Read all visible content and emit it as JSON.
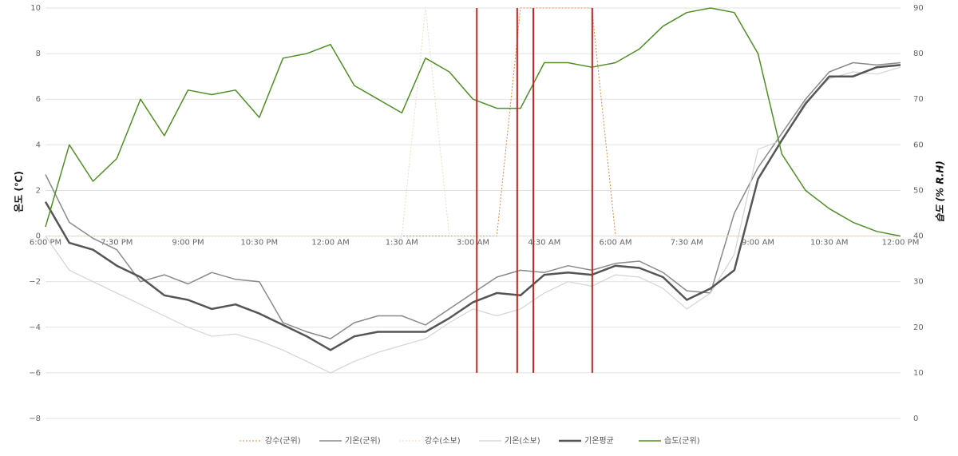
{
  "chart_data": {
    "type": "line",
    "ylabel": "온도 (℃)",
    "y2label": "습도 (% R.H)",
    "x": [
      0,
      0.5,
      1,
      1.5,
      2,
      2.5,
      3,
      3.5,
      4,
      4.5,
      5,
      5.5,
      6,
      6.5,
      7,
      7.5,
      8,
      8.5,
      9,
      9.5,
      10,
      10.5,
      11,
      11.5,
      12,
      12.5,
      13,
      13.5,
      14,
      14.5,
      15,
      15.5,
      16,
      16.5,
      17,
      17.5,
      18
    ],
    "xlim": [
      0,
      18
    ],
    "xticks": [
      {
        "value": 0,
        "label": "6:00 PM"
      },
      {
        "value": 1.5,
        "label": "7:30 PM"
      },
      {
        "value": 3,
        "label": "9:00 PM"
      },
      {
        "value": 4.5,
        "label": "10:30 PM"
      },
      {
        "value": 6,
        "label": "12:00 AM"
      },
      {
        "value": 7.5,
        "label": "1:30 AM"
      },
      {
        "value": 9,
        "label": "3:00 AM"
      },
      {
        "value": 10.5,
        "label": "4:30 AM"
      },
      {
        "value": 12,
        "label": "6:00 AM"
      },
      {
        "value": 13.5,
        "label": "7:30 AM"
      },
      {
        "value": 15,
        "label": "9:00 AM"
      },
      {
        "value": 16.5,
        "label": "10:30 AM"
      },
      {
        "value": 18,
        "label": "12:00 PM"
      }
    ],
    "ylim": [
      -8,
      10
    ],
    "yticks": [
      {
        "value": -8,
        "label": "−8"
      },
      {
        "value": -6,
        "label": "−6"
      },
      {
        "value": -4,
        "label": "−4"
      },
      {
        "value": -2,
        "label": "−2"
      },
      0,
      2,
      4,
      6,
      8,
      10
    ],
    "y2lim": [
      0,
      90
    ],
    "y2ticks": [
      0,
      10,
      20,
      30,
      40,
      50,
      60,
      70,
      80,
      90
    ],
    "grid": true,
    "legend": "bottom",
    "vlines": [
      9.08,
      9.93,
      10.27,
      11.51
    ],
    "vline_color": "#c0281e",
    "vline_bottom": -6,
    "series": [
      {
        "name": "강수(군위)",
        "color": "#e08a4a",
        "dashed": true,
        "width": 1,
        "values": [
          0,
          0,
          0,
          0,
          0,
          0,
          0,
          0,
          0,
          0,
          0,
          0,
          0,
          0,
          0,
          0,
          0,
          0,
          0,
          0,
          10,
          10,
          10,
          10,
          0,
          0,
          0,
          0,
          0,
          0,
          0,
          0,
          0,
          0,
          0,
          0,
          0
        ]
      },
      {
        "name": "기온(군위)",
        "color": "#8a8a8a",
        "width": 1.5,
        "values": [
          2.7,
          0.6,
          -0.1,
          -0.6,
          -2.0,
          -1.7,
          -2.1,
          -1.6,
          -1.9,
          -2.0,
          -3.8,
          -4.2,
          -4.5,
          -3.8,
          -3.5,
          -3.5,
          -3.9,
          -3.2,
          -2.5,
          -1.8,
          -1.5,
          -1.6,
          -1.3,
          -1.5,
          -1.2,
          -1.1,
          -1.6,
          -2.4,
          -2.5,
          1.0,
          3.0,
          4.5,
          6.0,
          7.2,
          7.6,
          7.5,
          7.6
        ]
      },
      {
        "name": "강수(소보)",
        "color": "#f3d9bd",
        "dashed": true,
        "width": 1,
        "values": [
          0,
          0,
          0,
          0,
          0,
          0,
          0,
          0,
          0,
          0,
          0,
          0,
          0,
          0,
          0,
          0,
          10,
          0,
          0,
          0,
          0,
          0,
          0,
          0,
          0,
          0,
          0,
          0,
          0,
          0,
          0,
          0,
          0,
          0,
          0,
          0,
          0
        ]
      },
      {
        "name": "기온(소보)",
        "color": "#d4d4d4",
        "width": 1.2,
        "values": [
          0.0,
          -1.5,
          -2.0,
          -2.5,
          -3.0,
          -3.5,
          -4.0,
          -4.4,
          -4.3,
          -4.6,
          -5.0,
          -5.5,
          -6.0,
          -5.5,
          -5.1,
          -4.8,
          -4.5,
          -3.8,
          -3.2,
          -3.5,
          -3.2,
          -2.5,
          -2.0,
          -2.2,
          -1.7,
          -1.8,
          -2.3,
          -3.2,
          -2.5,
          -0.8,
          3.8,
          4.2,
          5.9,
          6.9,
          7.2,
          7.1,
          7.4
        ]
      },
      {
        "name": "기온평균",
        "color": "#555555",
        "width": 2.5,
        "values": [
          1.5,
          -0.3,
          -0.6,
          -1.3,
          -1.8,
          -2.6,
          -2.8,
          -3.2,
          -3.0,
          -3.4,
          -3.9,
          -4.4,
          -5.0,
          -4.4,
          -4.2,
          -4.2,
          -4.2,
          -3.6,
          -2.9,
          -2.5,
          -2.6,
          -1.7,
          -1.6,
          -1.7,
          -1.3,
          -1.4,
          -1.8,
          -2.8,
          -2.3,
          -1.5,
          2.5,
          4.2,
          5.8,
          7.0,
          7.0,
          7.4,
          7.5
        ]
      },
      {
        "name": "습도(군위)",
        "color": "#4f8f23",
        "width": 1.5,
        "axis": "y2",
        "values": [
          42,
          60,
          52,
          57,
          70,
          62,
          72,
          71,
          72,
          66,
          79,
          80,
          82,
          73,
          70,
          67,
          79,
          76,
          70,
          68,
          68,
          78,
          78,
          77,
          78,
          81,
          86,
          89,
          90,
          89,
          80,
          58,
          50,
          46,
          43,
          41,
          40
        ]
      }
    ]
  }
}
